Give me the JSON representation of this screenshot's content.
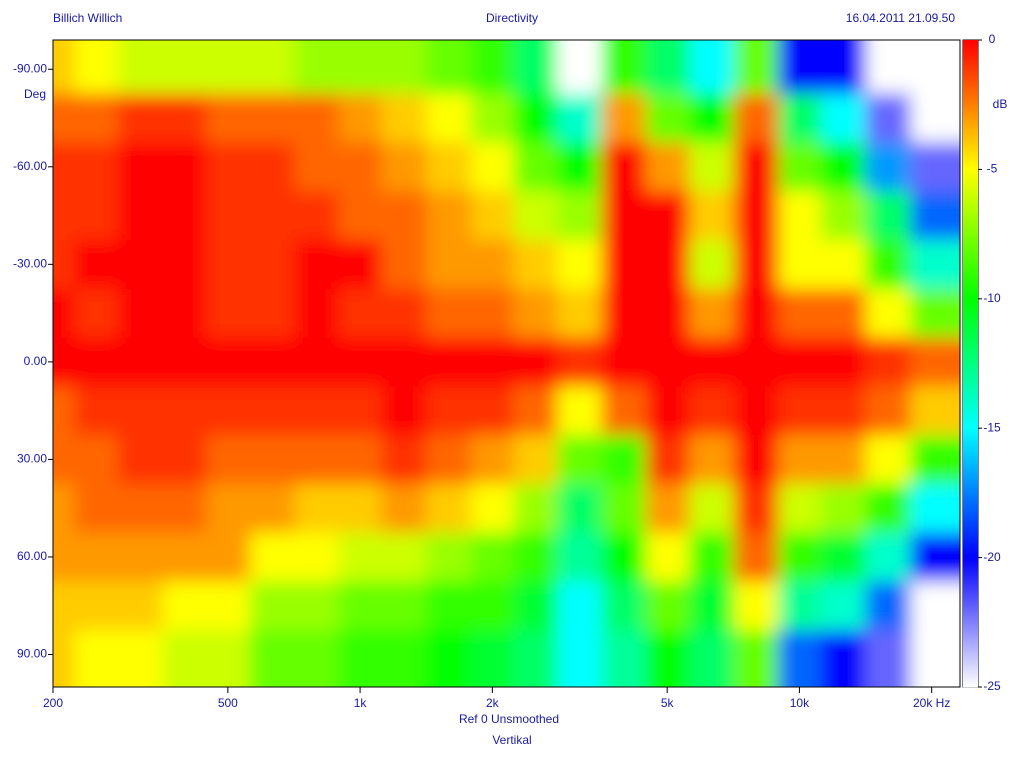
{
  "chart_data": {
    "type": "heatmap",
    "header_left": "Billich Willich",
    "title": "Directivity",
    "header_right": "16.04.2011 21.09.50",
    "ylabel": "Deg",
    "xlabel": "Ref 0   Unsmoothed",
    "subtitle": "Vertikal",
    "zlabel": "dB",
    "log_x": true,
    "xlim": [
      200,
      23200
    ],
    "xticks": [
      {
        "value": 200,
        "label": "200"
      },
      {
        "value": 500,
        "label": "500"
      },
      {
        "value": 1000,
        "label": "1k"
      },
      {
        "value": 2000,
        "label": "2k"
      },
      {
        "value": 5000,
        "label": "5k"
      },
      {
        "value": 10000,
        "label": "10k"
      },
      {
        "value": 20000,
        "label": "20k Hz"
      }
    ],
    "ylim": [
      -99,
      100
    ],
    "yticks": [
      {
        "value": -90,
        "label": "-90.00"
      },
      {
        "value": -60,
        "label": "-60.00"
      },
      {
        "value": -30,
        "label": "-30.00"
      },
      {
        "value": 0,
        "label": "0.00"
      },
      {
        "value": 30,
        "label": "30.00"
      },
      {
        "value": 60,
        "label": "60.00"
      },
      {
        "value": 90,
        "label": "90.00"
      }
    ],
    "zlim": [
      -25,
      0
    ],
    "zticks": [
      0,
      -5,
      -10,
      -15,
      -20,
      -25
    ],
    "colorscale": [
      {
        "value": 0,
        "color": "#ff0000"
      },
      {
        "value": -2.5,
        "color": "#ff7f00"
      },
      {
        "value": -5,
        "color": "#ffff00"
      },
      {
        "value": -7.5,
        "color": "#7fff00"
      },
      {
        "value": -10,
        "color": "#00ff00"
      },
      {
        "value": -12.5,
        "color": "#00ff80"
      },
      {
        "value": -15,
        "color": "#00ffff"
      },
      {
        "value": -17.5,
        "color": "#0080ff"
      },
      {
        "value": -20,
        "color": "#0000ff"
      },
      {
        "value": -22.5,
        "color": "#8080ff"
      },
      {
        "value": -25,
        "color": "#ffffff"
      }
    ],
    "x": [
      200,
      250,
      315,
      400,
      500,
      630,
      800,
      1000,
      1250,
      1600,
      2000,
      2500,
      3150,
      4000,
      5000,
      6300,
      8000,
      10000,
      12500,
      16000,
      20000
    ],
    "y": [
      -90,
      -75,
      -60,
      -45,
      -30,
      -15,
      0,
      15,
      30,
      45,
      60,
      75,
      90
    ],
    "z": [
      [
        -4,
        -5,
        -6,
        -6,
        -6,
        -6,
        -7,
        -7,
        -7,
        -8,
        -9,
        -12,
        -25,
        -9,
        -12,
        -15,
        -8,
        -20,
        -20,
        -25,
        -25
      ],
      [
        -2,
        -2,
        -1,
        -1,
        -2,
        -2,
        -2,
        -3,
        -4,
        -5,
        -7,
        -10,
        -14,
        -3,
        -8,
        -10,
        -2,
        -12,
        -15,
        -22,
        -25
      ],
      [
        -1,
        -1,
        0,
        0,
        -1,
        -1,
        -2,
        -2,
        -3,
        -4,
        -5,
        -8,
        -10,
        0,
        -3,
        -6,
        0,
        -8,
        -10,
        -17,
        -22
      ],
      [
        -1,
        -1,
        0,
        0,
        -1,
        -1,
        -1,
        -2,
        -2,
        -3,
        -4,
        -6,
        -7,
        0,
        0,
        -4,
        0,
        -5,
        -7,
        -12,
        -18
      ],
      [
        -1,
        0,
        0,
        0,
        -1,
        -1,
        0,
        0,
        -2,
        -3,
        -3,
        -4,
        -5,
        0,
        0,
        -6,
        0,
        -5,
        -5,
        -9,
        -14
      ],
      [
        0,
        -1,
        0,
        0,
        -1,
        -1,
        0,
        -1,
        -1,
        -2,
        -2,
        -3,
        -4,
        0,
        0,
        -3,
        0,
        -2,
        -2,
        -5,
        -8
      ],
      [
        0,
        0,
        0,
        0,
        0,
        0,
        0,
        0,
        0,
        0,
        0,
        0,
        -1,
        0,
        0,
        0,
        0,
        0,
        0,
        -1,
        -2
      ],
      [
        -2,
        -1,
        -1,
        -1,
        -1,
        -1,
        -1,
        -1,
        0,
        -1,
        -1,
        -2,
        -5,
        -2,
        0,
        -1,
        0,
        -1,
        -1,
        -2,
        -4
      ],
      [
        -2,
        -2,
        -1,
        -1,
        -2,
        -2,
        -2,
        -2,
        -1,
        -2,
        -3,
        -4,
        -8,
        -9,
        -1,
        -3,
        0,
        -3,
        -3,
        -5,
        -9
      ],
      [
        -3,
        -2,
        -2,
        -2,
        -3,
        -3,
        -4,
        -4,
        -3,
        -4,
        -5,
        -7,
        -12,
        -8,
        -3,
        -6,
        -1,
        -6,
        -7,
        -9,
        -15
      ],
      [
        -3,
        -3,
        -3,
        -3,
        -3,
        -5,
        -5,
        -6,
        -6,
        -7,
        -8,
        -9,
        -13,
        -10,
        -5,
        -9,
        -2,
        -9,
        -11,
        -14,
        -20
      ],
      [
        -4,
        -4,
        -4,
        -5,
        -5,
        -7,
        -7,
        -8,
        -8,
        -9,
        -9,
        -11,
        -15,
        -12,
        -8,
        -11,
        -5,
        -13,
        -14,
        -18,
        -25
      ],
      [
        -4,
        -5,
        -5,
        -6,
        -6,
        -8,
        -8,
        -9,
        -9,
        -10,
        -11,
        -12,
        -15,
        -13,
        -10,
        -12,
        -8,
        -18,
        -20,
        -22,
        -25
      ]
    ]
  }
}
